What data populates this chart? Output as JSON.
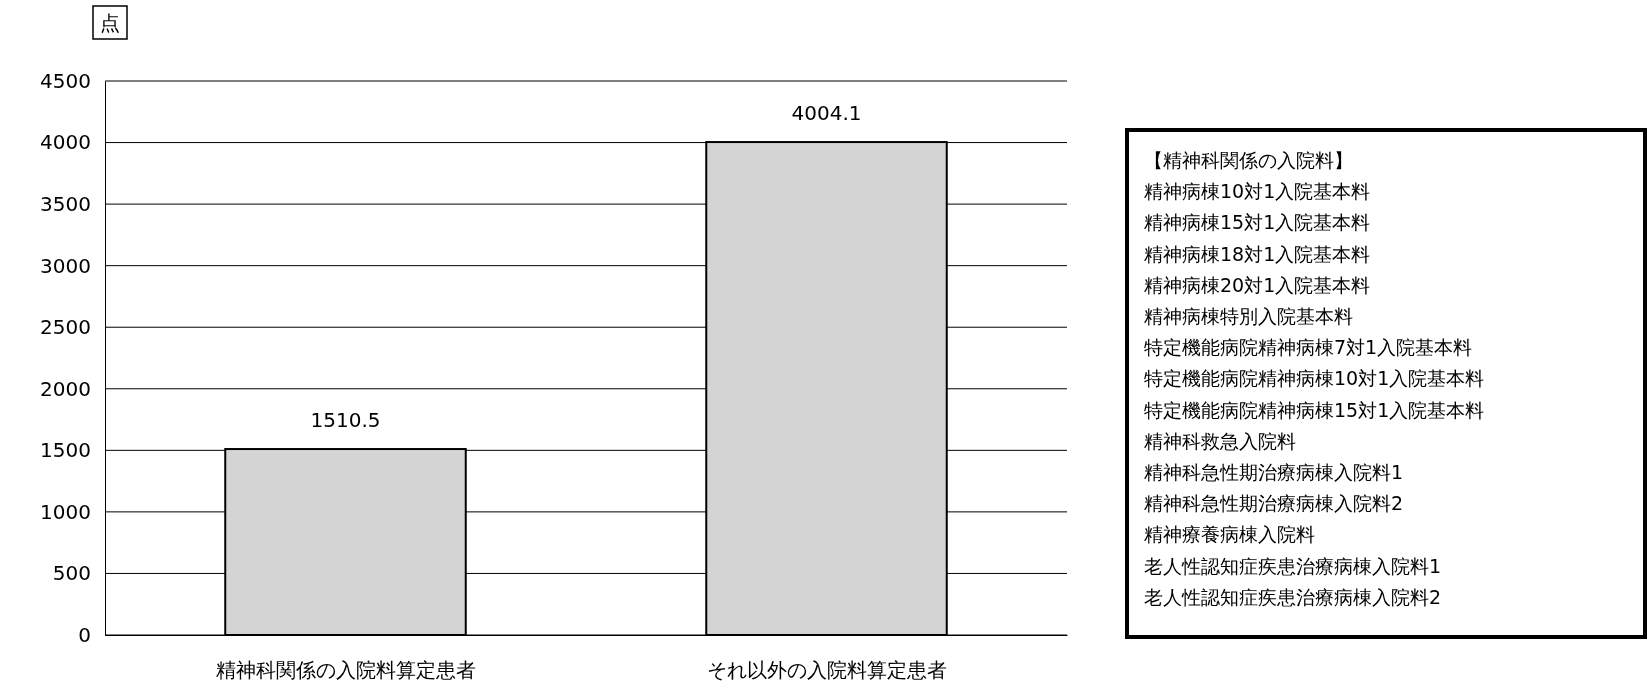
{
  "chart_data": {
    "type": "bar",
    "ylabel": "点",
    "categories": [
      "精神科関係の入院料算定患者",
      "それ以外の入院料算定患者"
    ],
    "values": [
      1510.5,
      4004.1
    ],
    "color": "#d4d4d4",
    "data_labels": true,
    "ylim": [
      0,
      4500
    ],
    "yticks": [
      0,
      500,
      1000,
      1500,
      2000,
      2500,
      3000,
      3500,
      4000,
      4500
    ],
    "grid": "y",
    "annotations": [
      "【精神科関係の入院料】",
      "精神病棟10対1入院基本料",
      "精神病棟15対1入院基本料",
      "精神病棟18対1入院基本料",
      "精神病棟20対1入院基本料",
      "精神病棟特別入院基本料",
      "特定機能病院精神病棟7対1入院基本料",
      "特定機能病院精神病棟10対1入院基本料",
      "特定機能病院精神病棟15対1入院基本料",
      "精神科救急入院料",
      "精神科急性期治療病棟入院料1",
      "精神科急性期治療病棟入院料2",
      "精神療養病棟入院料",
      "老人性認知症疾患治療病棟入院料1",
      "老人性認知症疾患治療病棟入院料2"
    ]
  }
}
